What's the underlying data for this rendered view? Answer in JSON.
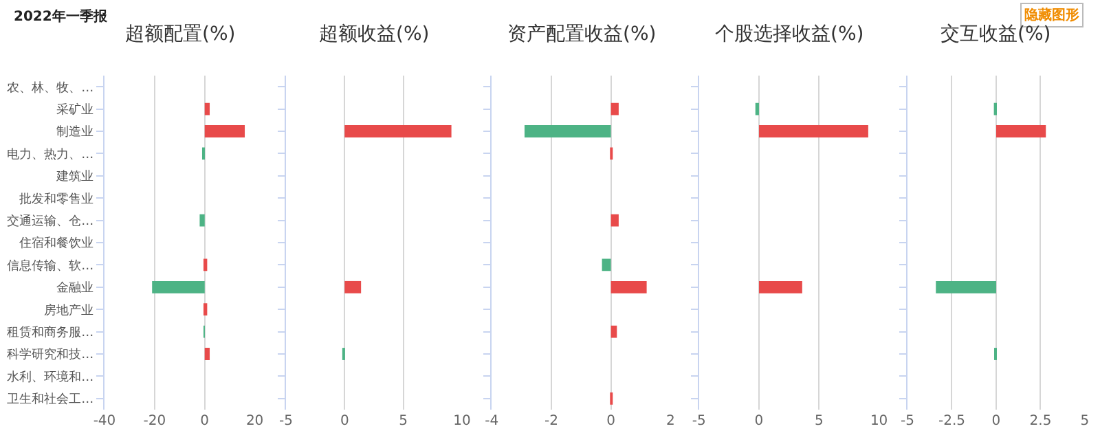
{
  "chart_data": [
    {
      "type": "bar",
      "orientation": "horizontal",
      "title": "超额配置(%)",
      "annotations": [
        "2022年一季报",
        "隐藏图形"
      ],
      "categories": [
        "农、林、牧、…",
        "采矿业",
        "制造业",
        "电力、热力、…",
        "建筑业",
        "批发和零售业",
        "交通运输、仓…",
        "住宿和餐饮业",
        "信息传输、软…",
        "金融业",
        "房地产业",
        "租赁和商务服…",
        "科学研究和技…",
        "水利、环境和…",
        "卫生和社会工…"
      ],
      "values": [
        null,
        2,
        16,
        -0.5,
        null,
        null,
        -2,
        null,
        1,
        -21,
        1,
        -0.3,
        2,
        null,
        null
      ],
      "colors": [
        "#e84a4a",
        "#e84a4a",
        "#e84a4a",
        "#4db385",
        "#e84a4a",
        "#e84a4a",
        "#4db385",
        "#e84a4a",
        "#e84a4a",
        "#4db385",
        "#e84a4a",
        "#4db385",
        "#e84a4a",
        "#e84a4a",
        "#e84a4a"
      ],
      "xlim": [
        -40,
        20
      ],
      "xticks": [
        -40,
        -20,
        0,
        20
      ],
      "grid": "x"
    },
    {
      "type": "bar",
      "orientation": "horizontal",
      "title": "超额收益(%)",
      "categories": [
        null,
        null,
        null,
        null,
        null,
        null,
        null,
        null,
        null,
        null,
        null,
        null,
        null,
        null,
        null
      ],
      "values": [
        null,
        null,
        9.1,
        null,
        null,
        null,
        null,
        null,
        null,
        1.4,
        null,
        null,
        -0.2,
        null,
        null
      ],
      "colors": [
        "#e84a4a",
        "#e84a4a",
        "#e84a4a",
        "#e84a4a",
        "#e84a4a",
        "#e84a4a",
        "#e84a4a",
        "#e84a4a",
        "#e84a4a",
        "#e84a4a",
        "#e84a4a",
        "#e84a4a",
        "#4db385",
        "#e84a4a",
        "#e84a4a"
      ],
      "xlim": [
        -5,
        10
      ],
      "xticks": [
        -5,
        0,
        5,
        10
      ],
      "grid": "x",
      "tick_labels": "x"
    },
    {
      "type": "bar",
      "orientation": "horizontal",
      "title": "资产配置收益(%)",
      "categories": [
        null,
        null,
        null,
        null,
        null,
        null,
        null,
        null,
        null,
        null,
        null,
        null,
        null,
        null,
        null
      ],
      "values": [
        null,
        0.26,
        -2.9,
        0.05,
        null,
        null,
        0.26,
        null,
        -0.3,
        1.2,
        null,
        0.2,
        null,
        null,
        0.05
      ],
      "colors": [
        "#e84a4a",
        "#e84a4a",
        "#4db385",
        "#e84a4a",
        "#e84a4a",
        "#e84a4a",
        "#e84a4a",
        "#e84a4a",
        "#4db385",
        "#e84a4a",
        "#e84a4a",
        "#e84a4a",
        "#e84a4a",
        "#e84a4a",
        "#e84a4a"
      ],
      "xlim": [
        -4,
        2
      ],
      "xticks": [
        -4,
        -2,
        0,
        2
      ],
      "grid": "x",
      "tick_labels": "x"
    },
    {
      "type": "bar",
      "orientation": "horizontal",
      "title": "个股选择收益(%)",
      "categories": [
        null,
        null,
        null,
        null,
        null,
        null,
        null,
        null,
        null,
        null,
        null,
        null,
        null,
        null,
        null
      ],
      "values": [
        null,
        -0.3,
        9.1,
        null,
        null,
        null,
        null,
        null,
        null,
        3.6,
        null,
        null,
        null,
        null,
        null
      ],
      "colors": [
        "#e84a4a",
        "#4db385",
        "#e84a4a",
        "#e84a4a",
        "#e84a4a",
        "#e84a4a",
        "#e84a4a",
        "#e84a4a",
        "#e84a4a",
        "#e84a4a",
        "#e84a4a",
        "#e84a4a",
        "#e84a4a",
        "#e84a4a",
        "#e84a4a"
      ],
      "xlim": [
        -5,
        10
      ],
      "xticks": [
        -5,
        0,
        5,
        10
      ],
      "grid": "x",
      "tick_labels": "x"
    },
    {
      "type": "bar",
      "orientation": "horizontal",
      "title": "交互收益(%)",
      "categories": [
        null,
        null,
        null,
        null,
        null,
        null,
        null,
        null,
        null,
        null,
        null,
        null,
        null,
        null,
        null
      ],
      "values": [
        null,
        -0.13,
        2.8,
        null,
        null,
        null,
        null,
        null,
        null,
        -3.4,
        null,
        null,
        -0.1,
        null,
        null
      ],
      "colors": [
        "#e84a4a",
        "#4db385",
        "#e84a4a",
        "#e84a4a",
        "#e84a4a",
        "#e84a4a",
        "#e84a4a",
        "#e84a4a",
        "#e84a4a",
        "#4db385",
        "#e84a4a",
        "#e84a4a",
        "#4db385",
        "#e84a4a",
        "#e84a4a"
      ],
      "xlim": [
        -5,
        5
      ],
      "xticks": [
        -5,
        -2.5,
        0,
        2.5,
        5
      ],
      "grid": "x",
      "tick_labels": "x"
    }
  ]
}
